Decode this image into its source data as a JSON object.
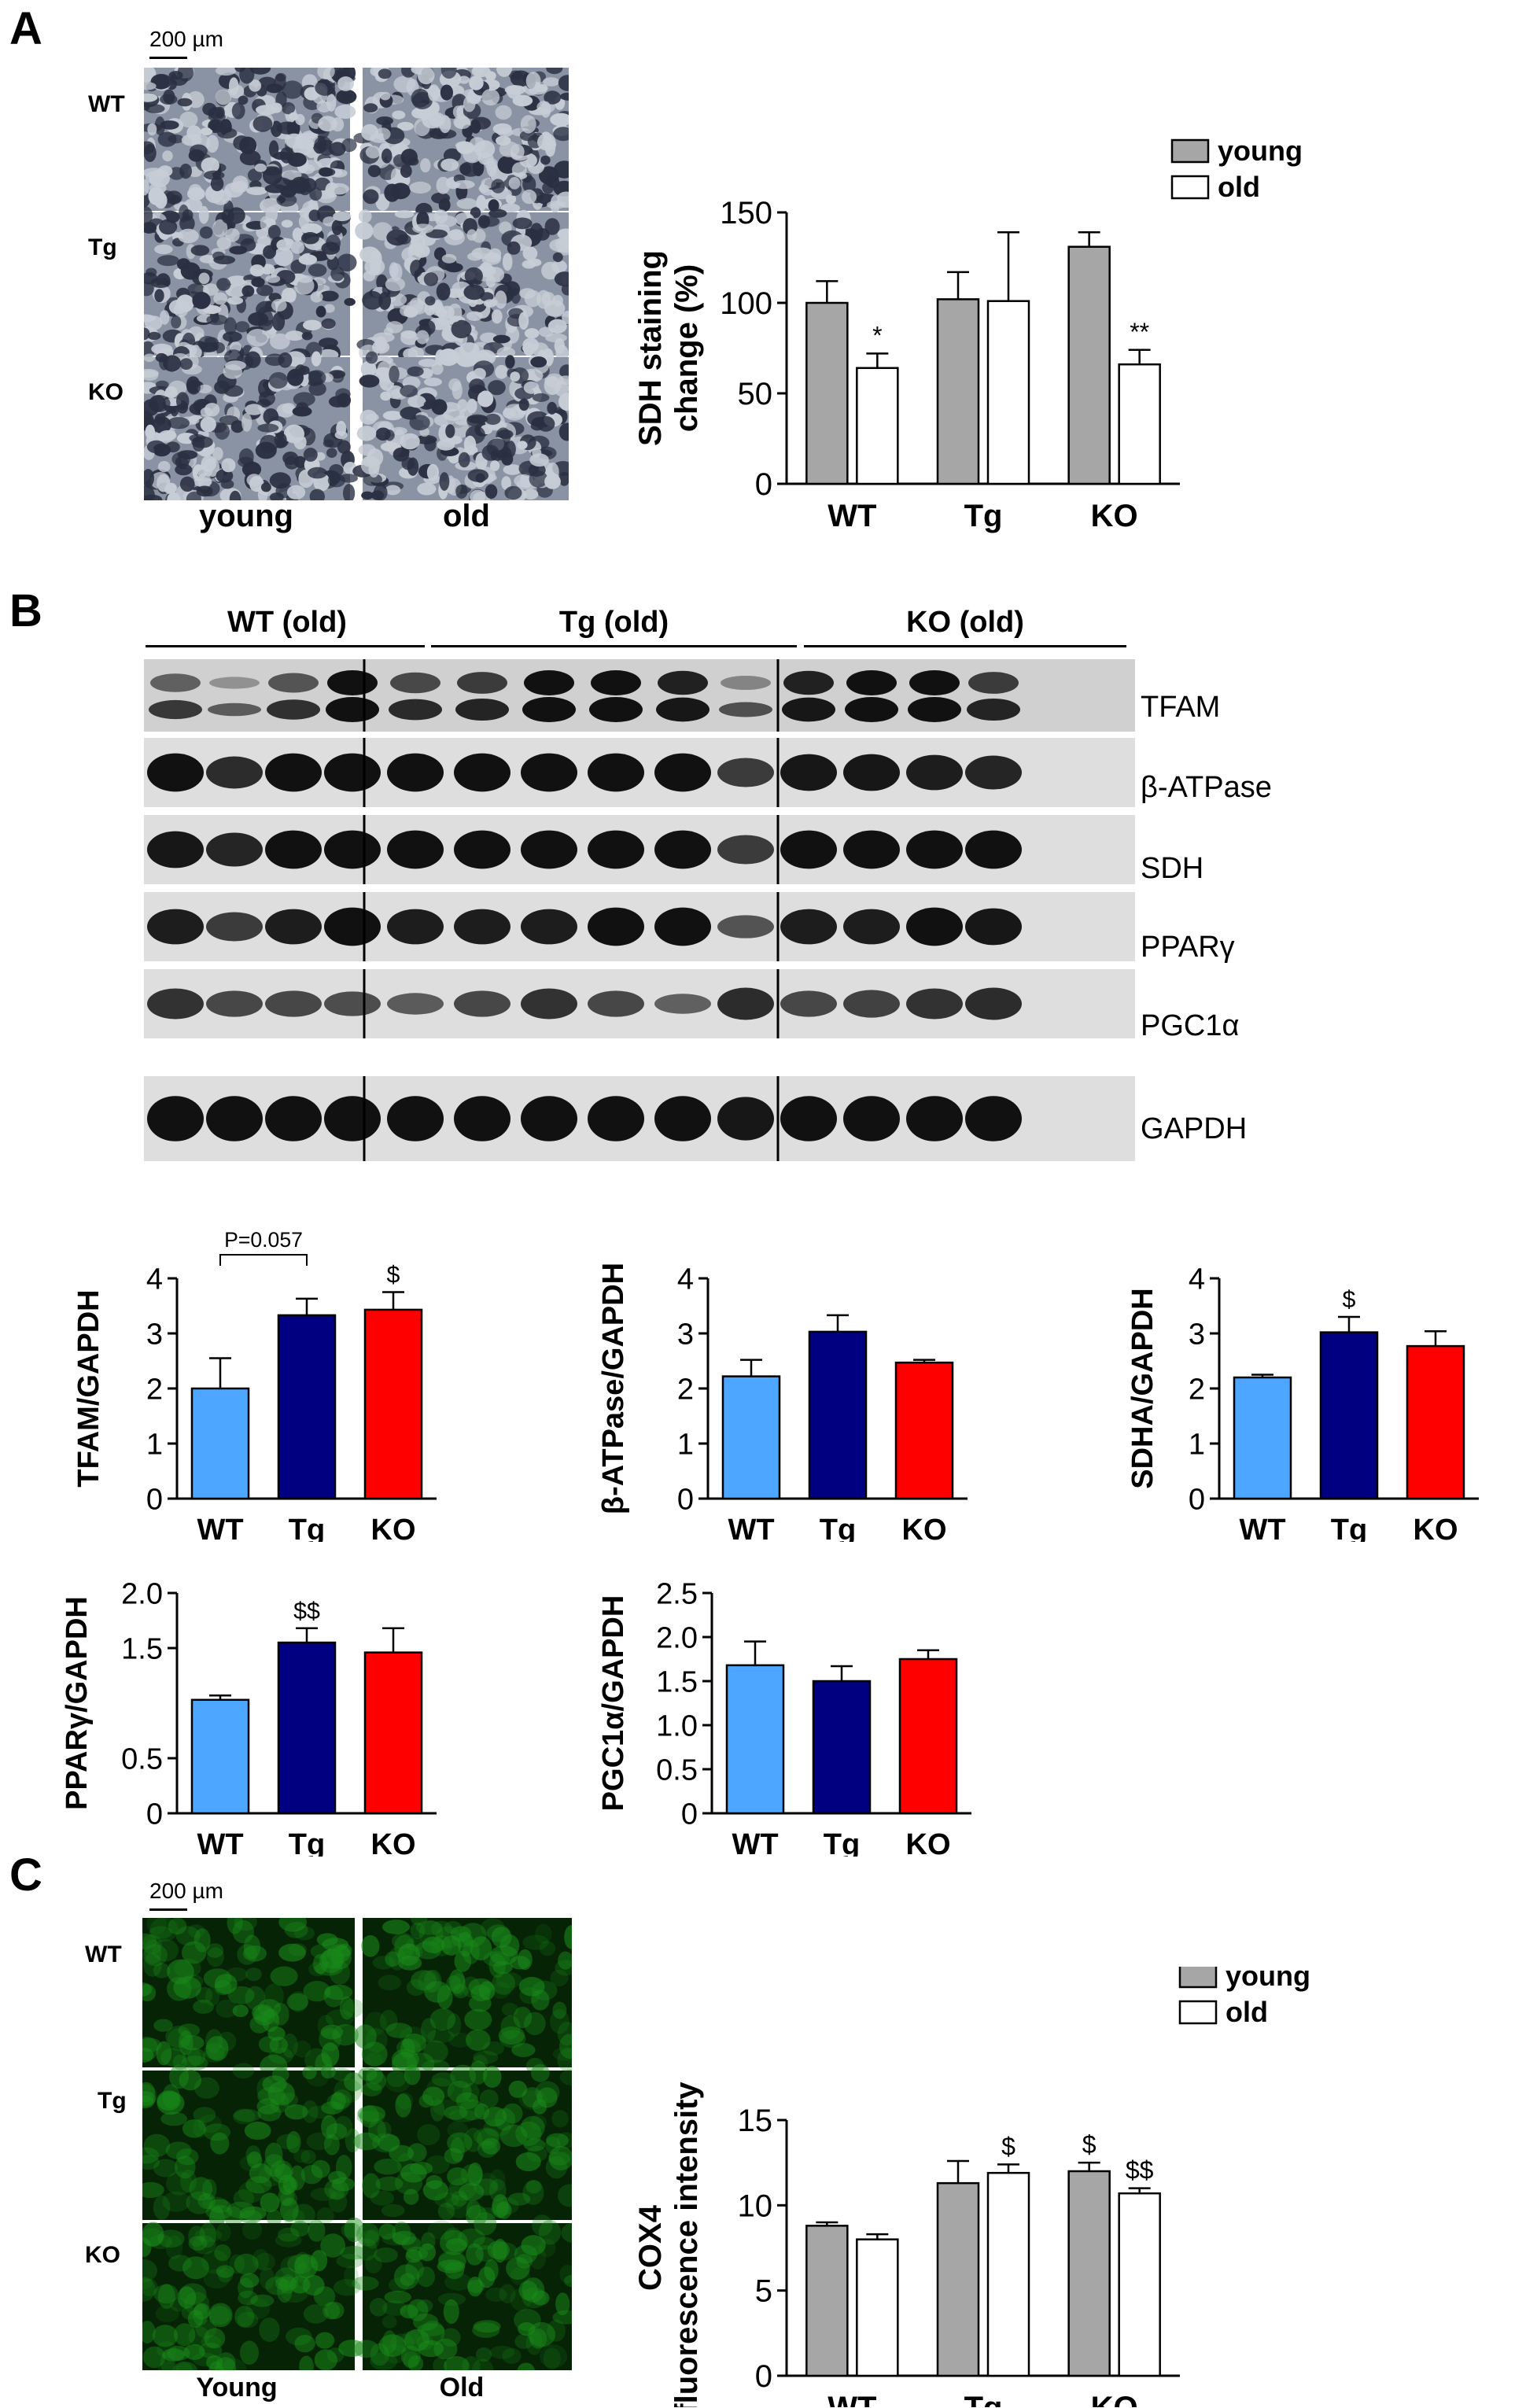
{
  "panelA": {
    "letter": "A",
    "scale": "200 µm",
    "rows": [
      "WT",
      "Tg",
      "KO"
    ],
    "cols": [
      "young",
      "old"
    ]
  },
  "panelB": {
    "letter": "B",
    "groups": [
      "WT (old)",
      "Tg (old)",
      "KO (old)"
    ],
    "proteins": [
      "TFAM",
      "β-ATPase",
      "SDH",
      "PPARγ",
      "PGC1α",
      "GAPDH"
    ]
  },
  "panelC": {
    "letter": "C",
    "scale": "200 µm",
    "rows": [
      "WT",
      "Tg",
      "KO"
    ],
    "cols": [
      "Young",
      "Old"
    ]
  },
  "colors": {
    "young": "#a6a6a6",
    "old": "#ffffff",
    "WT": "#4da6ff",
    "Tg": "#000080",
    "KO": "#ff0000",
    "stain_dark": "#2a3042",
    "stain_light": "#c7cdd6",
    "fluor": "#1a8a1a"
  },
  "chart_data": [
    {
      "id": "sdh",
      "type": "bar",
      "ylabel_lines": [
        "SDH staining",
        "change (%)"
      ],
      "ylim": [
        0,
        150
      ],
      "yticks": [
        0,
        50,
        100,
        150
      ],
      "categories": [
        "WT",
        "Tg",
        "KO"
      ],
      "legend": [
        "young",
        "old"
      ],
      "legend_placement": "top-right",
      "series": [
        {
          "name": "young",
          "values": [
            100,
            102,
            131
          ],
          "errors": [
            12,
            15,
            8
          ]
        },
        {
          "name": "old",
          "values": [
            64,
            101,
            66
          ],
          "errors": [
            8,
            38,
            8
          ]
        }
      ],
      "annotations": [
        {
          "series": 1,
          "category": 0,
          "text": "*"
        },
        {
          "series": 1,
          "category": 2,
          "text": "**"
        }
      ]
    },
    {
      "id": "tfam",
      "type": "bar",
      "ylabel": "TFAM/GAPDH",
      "ylim": [
        0,
        4
      ],
      "yticks": [
        "0",
        "1",
        "2",
        "3",
        "4"
      ],
      "categories": [
        "WT",
        "Tg",
        "KO"
      ],
      "values": [
        2.0,
        3.33,
        3.43
      ],
      "errors": [
        0.55,
        0.3,
        0.32
      ],
      "annotations": [
        {
          "category": 2,
          "text": "$"
        }
      ],
      "bracket": {
        "from": 0,
        "to": 1,
        "text": "P=0.057"
      }
    },
    {
      "id": "batpase",
      "type": "bar",
      "ylabel": "β-ATPase/GAPDH",
      "ylim": [
        0,
        4
      ],
      "yticks": [
        "0",
        "1",
        "2",
        "3",
        "4"
      ],
      "categories": [
        "WT",
        "Tg",
        "KO"
      ],
      "values": [
        2.22,
        3.03,
        2.47
      ],
      "errors": [
        0.3,
        0.3,
        0.05
      ],
      "annotations": []
    },
    {
      "id": "sdha",
      "type": "bar",
      "ylabel": "SDHA/GAPDH",
      "ylim": [
        0,
        4
      ],
      "yticks": [
        "0",
        "1",
        "2",
        "3",
        "4"
      ],
      "categories": [
        "WT",
        "Tg",
        "KO"
      ],
      "values": [
        2.2,
        3.02,
        2.77
      ],
      "errors": [
        0.05,
        0.28,
        0.27
      ],
      "annotations": [
        {
          "category": 1,
          "text": "$"
        }
      ]
    },
    {
      "id": "ppar",
      "type": "bar",
      "ylabel": "PPARγ/GAPDH",
      "ylim": [
        0,
        2.0
      ],
      "yticks": [
        "0",
        "0.5",
        "1.5",
        "2.0"
      ],
      "categories": [
        "WT",
        "Tg",
        "KO"
      ],
      "values": [
        1.03,
        1.55,
        1.46
      ],
      "errors": [
        0.04,
        0.13,
        0.22
      ],
      "annotations": [
        {
          "category": 1,
          "text": "$$"
        }
      ]
    },
    {
      "id": "pgc1a",
      "type": "bar",
      "ylabel": "PGC1α/GAPDH",
      "ylim": [
        0,
        2.5
      ],
      "yticks": [
        "0",
        "0.5",
        "1.0",
        "1.5",
        "2.0",
        "2.5"
      ],
      "categories": [
        "WT",
        "Tg",
        "KO"
      ],
      "values": [
        1.68,
        1.5,
        1.75
      ],
      "errors": [
        0.27,
        0.17,
        0.1
      ],
      "annotations": []
    },
    {
      "id": "cox4",
      "type": "bar",
      "ylabel_lines": [
        "COX4",
        "fluorescence intensity"
      ],
      "ylim": [
        0,
        15
      ],
      "yticks": [
        0,
        5,
        10,
        15
      ],
      "categories": [
        "WT",
        "Tg",
        "KO"
      ],
      "legend": [
        "young",
        "old"
      ],
      "legend_placement": "top-right",
      "series": [
        {
          "name": "young",
          "values": [
            8.8,
            11.3,
            12.0
          ],
          "errors": [
            0.2,
            1.3,
            0.5
          ]
        },
        {
          "name": "old",
          "values": [
            8.0,
            11.9,
            10.7
          ],
          "errors": [
            0.3,
            0.5,
            0.3
          ]
        }
      ],
      "annotations": [
        {
          "series": 1,
          "category": 1,
          "text": "$"
        },
        {
          "series": 0,
          "category": 2,
          "text": "$"
        },
        {
          "series": 1,
          "category": 2,
          "text": "$$"
        }
      ]
    }
  ]
}
